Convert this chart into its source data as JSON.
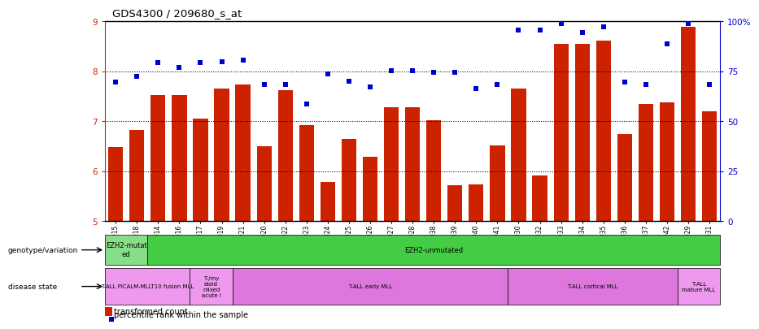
{
  "title": "GDS4300 / 209680_s_at",
  "samples": [
    "GSM759015",
    "GSM759018",
    "GSM759014",
    "GSM759016",
    "GSM759017",
    "GSM759019",
    "GSM759021",
    "GSM759020",
    "GSM759022",
    "GSM759023",
    "GSM759024",
    "GSM759025",
    "GSM759026",
    "GSM759027",
    "GSM759028",
    "GSM759038",
    "GSM759039",
    "GSM759040",
    "GSM759041",
    "GSM759030",
    "GSM759032",
    "GSM759033",
    "GSM759034",
    "GSM759035",
    "GSM759036",
    "GSM759037",
    "GSM759042",
    "GSM759029",
    "GSM759031"
  ],
  "bar_values": [
    6.48,
    6.82,
    7.52,
    7.52,
    7.05,
    7.65,
    7.73,
    6.5,
    7.62,
    6.92,
    5.78,
    6.65,
    6.28,
    7.28,
    7.28,
    7.02,
    5.72,
    5.73,
    6.52,
    7.65,
    5.92,
    8.55,
    8.55,
    8.62,
    6.75,
    7.35,
    7.38,
    8.9,
    7.2
  ],
  "percentile_values": [
    7.78,
    7.9,
    8.18,
    8.08,
    8.18,
    8.2,
    8.22,
    7.73,
    7.73,
    7.35,
    7.95,
    7.8,
    7.68,
    8.02,
    8.02,
    7.98,
    7.98,
    7.65,
    7.73,
    8.82,
    8.82,
    8.95,
    8.78,
    8.9,
    7.78,
    7.73,
    8.55,
    8.95,
    7.73
  ],
  "ylim_left": [
    5,
    9
  ],
  "ylim_right": [
    0,
    100
  ],
  "yticks_left": [
    5,
    6,
    7,
    8,
    9
  ],
  "yticks_right": [
    0,
    25,
    50,
    75,
    100
  ],
  "bar_color": "#cc2200",
  "dot_color": "#0000cc",
  "bg_color": "#ffffff",
  "genotype_groups": [
    {
      "label": "EZH2-mutat\ned",
      "start": 0,
      "end": 2,
      "color": "#88dd88"
    },
    {
      "label": "EZH2-unmutated",
      "start": 2,
      "end": 29,
      "color": "#44cc44"
    }
  ],
  "disease_groups": [
    {
      "label": "T-ALL PICALM-MLLT10 fusion MLL",
      "start": 0,
      "end": 4,
      "color": "#ee99ee"
    },
    {
      "label": "T-/my\neloid\nmixed\nacute l",
      "start": 4,
      "end": 6,
      "color": "#ee99ee"
    },
    {
      "label": "T-ALL early MLL",
      "start": 6,
      "end": 19,
      "color": "#dd77dd"
    },
    {
      "label": "T-ALL cortical MLL",
      "start": 19,
      "end": 27,
      "color": "#dd77dd"
    },
    {
      "label": "T-ALL\nmature MLL",
      "start": 27,
      "end": 29,
      "color": "#ee99ee"
    }
  ],
  "legend_bar_label": "transformed count",
  "legend_dot_label": "percentile rank within the sample",
  "right_axis_color": "#0000cc"
}
